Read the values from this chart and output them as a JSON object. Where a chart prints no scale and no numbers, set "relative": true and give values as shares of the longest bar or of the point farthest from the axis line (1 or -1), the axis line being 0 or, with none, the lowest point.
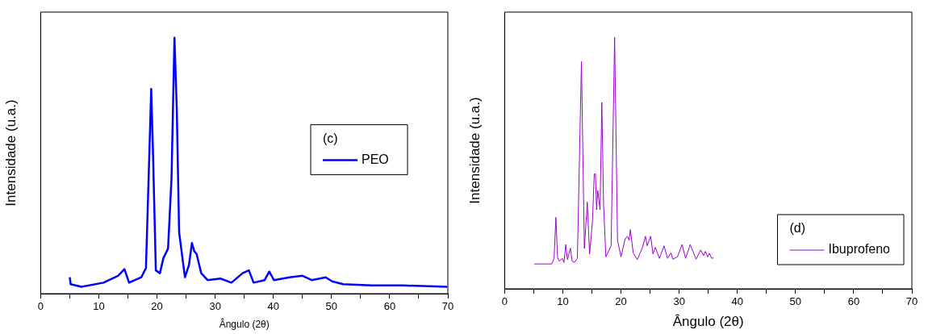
{
  "chart_data": [
    {
      "type": "line",
      "xlabel": "Ângulo (2θ)",
      "ylabel": "Intensidade (u.a.)",
      "relative": true,
      "legend": "right",
      "legend_title": "(c)",
      "grid": false,
      "marker": "none",
      "line_style": "solid",
      "xlim": [
        0,
        70
      ],
      "xticks": [
        0,
        {
          "value": 5,
          "label": null
        },
        10,
        {
          "value": 15,
          "label": null
        },
        20,
        {
          "value": 25,
          "label": null
        },
        30,
        {
          "value": 35,
          "label": null
        },
        40,
        {
          "value": 45,
          "label": null
        },
        50,
        {
          "value": 55,
          "label": null
        },
        60,
        {
          "value": 65,
          "label": null
        },
        70
      ],
      "series": [
        {
          "name": "PEO",
          "color": "#0000ff",
          "x": [
            5.0,
            5.15,
            7.0,
            10.8,
            13.3,
            14.4,
            15.2,
            17.3,
            18.1,
            18.7,
            19.0,
            19.3,
            19.8,
            20.5,
            21.1,
            21.9,
            22.5,
            23.0,
            23.4,
            23.8,
            24.8,
            25.5,
            26.0,
            26.4,
            26.8,
            27.6,
            28.7,
            30.9,
            32.8,
            34.7,
            35.8,
            36.6,
            38.5,
            39.3,
            40.1,
            42.8,
            45.0,
            46.6,
            49.0,
            50.1,
            52.0,
            56.9,
            62.3,
            69.9
          ],
          "values": [
            0.064,
            0.037,
            0.027,
            0.043,
            0.07,
            0.096,
            0.043,
            0.064,
            0.1,
            0.56,
            0.8,
            0.56,
            0.091,
            0.08,
            0.139,
            0.176,
            0.455,
            1.0,
            0.72,
            0.24,
            0.064,
            0.112,
            0.198,
            0.166,
            0.155,
            0.08,
            0.053,
            0.059,
            0.043,
            0.08,
            0.091,
            0.043,
            0.053,
            0.086,
            0.053,
            0.064,
            0.07,
            0.053,
            0.064,
            0.048,
            0.037,
            0.032,
            0.032,
            0.027
          ]
        }
      ]
    },
    {
      "type": "line",
      "xlabel": "Ângulo (2θ)",
      "ylabel": "Intensidade (u.a.)",
      "relative": true,
      "legend": "bottom right",
      "legend_title": "(d)",
      "grid": false,
      "marker": "none",
      "line_style": "solid",
      "xlim": [
        0,
        70
      ],
      "xticks": [
        0,
        {
          "value": 5,
          "label": null
        },
        10,
        {
          "value": 15,
          "label": null
        },
        20,
        {
          "value": 25,
          "label": null
        },
        30,
        {
          "value": 35,
          "label": null
        },
        40,
        {
          "value": 45,
          "label": null
        },
        50,
        {
          "value": 55,
          "label": null
        },
        60,
        {
          "value": 65,
          "label": null
        },
        70
      ],
      "series": [
        {
          "name": "Ibuprofeno",
          "color": "#9900cc",
          "x": [
            5.1,
            8.1,
            8.5,
            8.8,
            9.1,
            9.4,
            9.9,
            10.2,
            10.5,
            10.8,
            11.3,
            11.6,
            12.0,
            12.5,
            13.2,
            13.7,
            14.2,
            14.6,
            15.1,
            15.4,
            15.6,
            15.8,
            16.0,
            16.4,
            16.7,
            17.0,
            17.4,
            18.3,
            18.9,
            19.4,
            20.0,
            20.7,
            21.1,
            21.4,
            21.6,
            22.1,
            22.8,
            23.7,
            24.2,
            24.5,
            25.1,
            25.5,
            25.9,
            26.6,
            27.4,
            28.0,
            28.6,
            28.9,
            29.7,
            30.5,
            31.1,
            31.9,
            32.9,
            33.7,
            34.2,
            34.5,
            34.9,
            35.2,
            35.6,
            35.9
          ],
          "values": [
            0.099,
            0.099,
            0.121,
            0.284,
            0.124,
            0.11,
            0.121,
            0.105,
            0.176,
            0.116,
            0.162,
            0.11,
            0.105,
            0.121,
            0.903,
            0.16,
            0.345,
            0.138,
            0.27,
            0.457,
            0.457,
            0.314,
            0.391,
            0.314,
            0.741,
            0.336,
            0.127,
            0.171,
            1.0,
            0.193,
            0.127,
            0.198,
            0.209,
            0.193,
            0.235,
            0.143,
            0.116,
            0.165,
            0.209,
            0.171,
            0.209,
            0.138,
            0.165,
            0.121,
            0.171,
            0.121,
            0.143,
            0.118,
            0.127,
            0.176,
            0.121,
            0.176,
            0.118,
            0.154,
            0.132,
            0.149,
            0.127,
            0.141,
            0.121,
            0.123
          ]
        }
      ]
    }
  ]
}
